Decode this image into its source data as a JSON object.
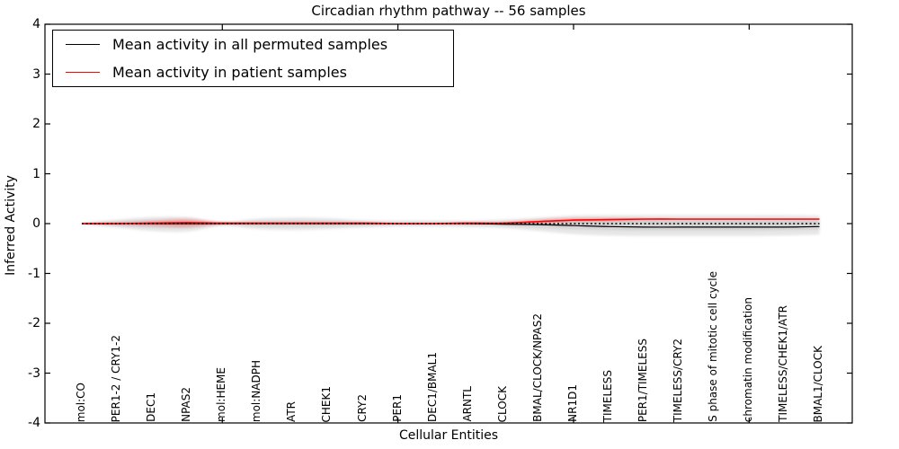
{
  "chart_data": {
    "type": "line",
    "title": "Circadian rhythm pathway -- 56 samples",
    "xlabel": "Cellular Entities",
    "ylabel": "Inferred Activity",
    "ylim": [
      -4,
      4
    ],
    "yticks": [
      "4",
      "3",
      "2",
      "1",
      "0",
      "-1",
      "-2",
      "-3",
      "-4"
    ],
    "ytick_values": [
      4,
      3,
      2,
      1,
      0,
      -1,
      -2,
      -3,
      -4
    ],
    "major_xtick_indices": [
      4,
      9,
      14,
      19
    ],
    "grid": false,
    "legend_position": "upper left",
    "categories": [
      "mol:CO",
      "PER1-2 / CRY1-2",
      "DEC1",
      "NPAS2",
      "mol:HEME",
      "mol:NADPH",
      "ATR",
      "CHEK1",
      "CRY2",
      "PER1",
      "DEC1/BMAL1",
      "ARNTL",
      "CLOCK",
      "BMAL/CLOCK/NPAS2",
      "NR1D1",
      "TIMELESS",
      "PER1/TIMELESS",
      "TIMELESS/CRY2",
      "S phase of mitotic cell cycle",
      "chromatin modification",
      "TIMELESS/CHEK1/ATR",
      "BMAL1/CLOCK"
    ],
    "series": [
      {
        "name": "Mean activity in all permuted samples",
        "color": "#000000",
        "style": "solid",
        "width": 1.2,
        "in_legend": true,
        "values": [
          0,
          0,
          0,
          0,
          0,
          0,
          0,
          0,
          0,
          0,
          0,
          0,
          -0.01,
          -0.02,
          -0.04,
          -0.06,
          -0.07,
          -0.07,
          -0.07,
          -0.07,
          -0.07,
          -0.06
        ]
      },
      {
        "name": "Mean activity in patient samples",
        "color": "#ff0000",
        "style": "solid",
        "width": 1.6,
        "in_legend": true,
        "values": [
          0,
          0,
          0.01,
          0.02,
          0.01,
          0.01,
          0.01,
          0.01,
          0.01,
          0,
          0,
          0.01,
          0.01,
          0.04,
          0.07,
          0.08,
          0.09,
          0.09,
          0.09,
          0.09,
          0.09,
          0.09
        ]
      },
      {
        "name": "zero reference",
        "color": "#000000",
        "style": "dashed",
        "width": 1.5,
        "in_legend": false,
        "values": [
          0,
          0,
          0,
          0,
          0,
          0,
          0,
          0,
          0,
          0,
          0,
          0,
          0,
          0,
          0,
          0,
          0,
          0,
          0,
          0,
          0,
          0
        ]
      }
    ],
    "bands": [
      {
        "name": "permuted samples spread outer",
        "color": "#bbbbbb",
        "opacity": 0.35,
        "hi": [
          0.02,
          0.08,
          0.13,
          0.13,
          0.04,
          0.1,
          0.12,
          0.11,
          0.07,
          0.06,
          0.06,
          0.06,
          0.08,
          0.12,
          0.16,
          0.17,
          0.17,
          0.17,
          0.17,
          0.17,
          0.17,
          0.16
        ],
        "lo": [
          -0.02,
          -0.08,
          -0.15,
          -0.16,
          -0.05,
          -0.11,
          -0.13,
          -0.11,
          -0.08,
          -0.06,
          -0.06,
          -0.07,
          -0.09,
          -0.15,
          -0.21,
          -0.24,
          -0.25,
          -0.25,
          -0.25,
          -0.25,
          -0.24,
          -0.22
        ]
      },
      {
        "name": "permuted samples spread inner",
        "color": "#bbbbbb",
        "opacity": 0.42,
        "hi": [
          0.01,
          0.04,
          0.07,
          0.07,
          0.02,
          0.05,
          0.06,
          0.055,
          0.035,
          0.03,
          0.03,
          0.03,
          0.04,
          0.06,
          0.08,
          0.09,
          0.09,
          0.09,
          0.09,
          0.09,
          0.09,
          0.08
        ],
        "lo": [
          -0.01,
          -0.04,
          -0.08,
          -0.08,
          -0.025,
          -0.055,
          -0.065,
          -0.055,
          -0.04,
          -0.03,
          -0.03,
          -0.035,
          -0.045,
          -0.08,
          -0.11,
          -0.13,
          -0.14,
          -0.14,
          -0.14,
          -0.14,
          -0.13,
          -0.12
        ]
      },
      {
        "name": "patient samples spread outer",
        "color": "#ff2222",
        "opacity": 0.16,
        "hi": [
          0,
          0.02,
          0.06,
          0.1,
          0.02,
          0.01,
          0.01,
          0.01,
          0.01,
          0,
          0,
          0.01,
          0.02,
          0.08,
          0.12,
          0.11,
          0.1,
          0.09,
          0.09,
          0.09,
          0.09,
          0.09
        ],
        "lo": [
          0,
          -0.02,
          -0.05,
          -0.08,
          -0.01,
          0,
          0,
          0,
          0,
          0,
          0,
          0,
          0,
          0.01,
          0.03,
          0.05,
          0.07,
          0.09,
          0.09,
          0.09,
          0.09,
          0.09
        ]
      },
      {
        "name": "patient samples spread inner",
        "color": "#ff2222",
        "opacity": 0.22,
        "hi": [
          0,
          0.01,
          0.03,
          0.06,
          0.01,
          0.01,
          0.01,
          0.01,
          0.01,
          0,
          0,
          0.01,
          0.01,
          0.06,
          0.09,
          0.1,
          0.09,
          0.09,
          0.09,
          0.09,
          0.09,
          0.09
        ],
        "lo": [
          0,
          -0.01,
          -0.02,
          -0.04,
          0,
          0,
          0,
          0,
          0,
          0,
          0,
          0,
          0.005,
          0.02,
          0.05,
          0.06,
          0.08,
          0.09,
          0.09,
          0.09,
          0.09,
          0.09
        ]
      }
    ]
  }
}
